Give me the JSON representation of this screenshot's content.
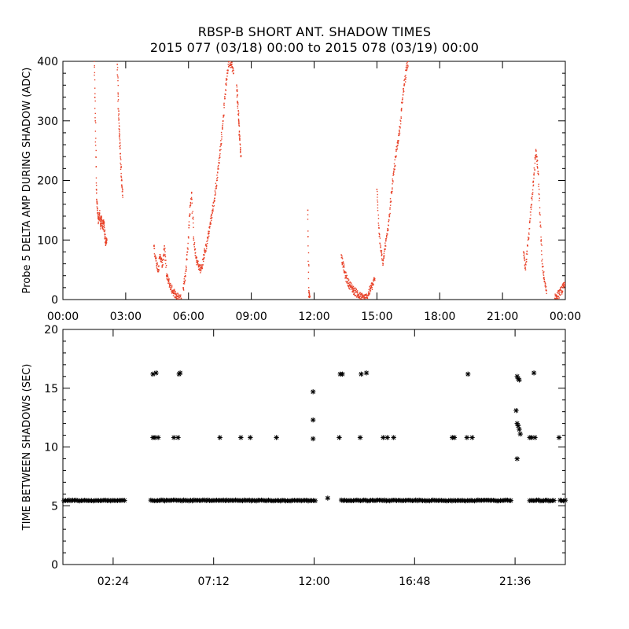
{
  "title_line1": "RBSP-B SHORT ANT. SHADOW TIMES",
  "title_line2": "2015 077 (03/18) 00:00 to 2015 078 (03/19) 00:00",
  "colors": {
    "top_series": "#e8432a",
    "bottom_series": "#000000",
    "axes": "#000000"
  },
  "chart_data": [
    {
      "type": "scatter",
      "ylabel": "Probe 5 DELTA AMP DURING SHADOW (ADC)",
      "x_unit": "hours since 2015-03-18 00:00",
      "xlim": [
        0,
        24
      ],
      "ylim": [
        0,
        400
      ],
      "x_ticks": [
        0,
        3,
        6,
        9,
        12,
        15,
        18,
        21,
        24
      ],
      "x_tick_labels": [
        "00:00",
        "03:00",
        "06:00",
        "09:00",
        "12:00",
        "15:00",
        "18:00",
        "21:00",
        "00:00"
      ],
      "y_ticks": [
        0,
        100,
        200,
        300,
        400
      ],
      "y_tick_labels": [
        "0",
        "100",
        "200",
        "300",
        "400"
      ],
      "grid": false,
      "segments": [
        {
          "x": [
            1.5,
            1.55,
            1.6,
            1.65,
            1.7,
            1.75,
            1.8,
            1.85,
            1.9,
            1.95,
            2.0,
            2.05,
            2.1
          ],
          "y": [
            400,
            300,
            185,
            150,
            130,
            145,
            125,
            135,
            120,
            130,
            110,
            95,
            100
          ]
        },
        {
          "x": [
            2.6,
            2.65,
            2.7,
            2.75,
            2.8,
            2.85
          ],
          "y": [
            395,
            320,
            285,
            245,
            200,
            175
          ]
        },
        {
          "x": [
            4.35,
            4.45,
            4.55,
            4.65,
            4.75,
            4.85,
            4.95,
            5.05,
            5.15,
            5.25,
            5.35,
            5.45,
            5.55,
            5.65
          ],
          "y": [
            90,
            65,
            50,
            75,
            55,
            90,
            40,
            30,
            20,
            15,
            10,
            5,
            3,
            2
          ]
        },
        {
          "x": [
            5.75,
            5.85,
            5.95,
            6.05,
            6.15,
            6.25,
            6.35,
            6.45,
            6.55,
            6.65,
            6.75,
            6.85,
            6.95,
            7.05,
            7.15,
            7.25,
            7.35,
            7.45,
            7.55,
            7.65,
            7.75,
            7.85,
            7.95,
            8.05,
            8.15
          ],
          "y": [
            20,
            40,
            80,
            140,
            180,
            100,
            70,
            60,
            50,
            55,
            75,
            90,
            110,
            130,
            150,
            170,
            200,
            230,
            260,
            300,
            345,
            380,
            400,
            395,
            380
          ]
        },
        {
          "x": [
            8.3,
            8.35,
            8.4,
            8.45,
            8.5
          ],
          "y": [
            360,
            330,
            300,
            270,
            240
          ]
        },
        {
          "x": [
            11.7,
            11.75,
            11.8
          ],
          "y": [
            150,
            12,
            5
          ]
        },
        {
          "x": [
            13.3,
            13.4,
            13.5,
            13.6,
            13.7,
            13.8,
            13.9,
            14.0,
            14.1,
            14.2,
            14.3,
            14.4,
            14.5,
            14.6,
            14.7,
            14.8,
            14.9
          ],
          "y": [
            75,
            55,
            40,
            30,
            25,
            20,
            15,
            12,
            8,
            5,
            4,
            3,
            3,
            10,
            18,
            25,
            35
          ]
        },
        {
          "x": [
            15.0,
            15.1,
            15.2,
            15.3,
            15.4,
            15.5,
            15.6,
            15.7,
            15.8,
            15.9,
            16.0,
            16.1,
            16.2,
            16.3,
            16.4,
            16.5
          ],
          "y": [
            185,
            120,
            80,
            60,
            90,
            110,
            140,
            180,
            210,
            240,
            265,
            290,
            330,
            360,
            385,
            400
          ]
        },
        {
          "x": [
            22.0,
            22.1,
            22.2,
            22.3,
            22.4,
            22.5,
            22.6,
            22.7,
            22.8,
            22.9,
            23.0,
            23.1
          ],
          "y": [
            80,
            50,
            90,
            130,
            170,
            210,
            250,
            215,
            130,
            60,
            30,
            15
          ]
        },
        {
          "x": [
            23.5,
            23.6,
            23.7,
            23.8,
            23.9,
            24.0
          ],
          "y": [
            2,
            5,
            10,
            15,
            20,
            25
          ]
        }
      ]
    },
    {
      "type": "scatter",
      "ylabel": "TIME BETWEEN SHADOWS (SEC)",
      "x_unit": "hours since 2015-03-18 00:00",
      "xlim": [
        0,
        24
      ],
      "ylim": [
        0,
        20
      ],
      "x_ticks": [
        2.4,
        7.2,
        12.0,
        16.8,
        21.6
      ],
      "x_tick_labels": [
        "02:24",
        "07:12",
        "12:00",
        "16:48",
        "21:36"
      ],
      "y_ticks": [
        0,
        5,
        10,
        15,
        20
      ],
      "y_tick_labels": [
        "0",
        "5",
        "10",
        "15",
        "20"
      ],
      "grid": false,
      "marker": "asterisk",
      "baseline_value": 5.45,
      "baseline_ranges": [
        [
          0.05,
          3.0
        ],
        [
          4.2,
          12.05
        ],
        [
          13.3,
          21.4
        ],
        [
          22.3,
          23.5
        ],
        [
          23.75,
          24.0
        ]
      ],
      "points": [
        {
          "x": 4.3,
          "y": 16.2
        },
        {
          "x": 4.45,
          "y": 16.3
        },
        {
          "x": 4.3,
          "y": 10.8
        },
        {
          "x": 4.4,
          "y": 10.8
        },
        {
          "x": 4.55,
          "y": 10.8
        },
        {
          "x": 5.3,
          "y": 10.8
        },
        {
          "x": 5.5,
          "y": 10.8
        },
        {
          "x": 5.55,
          "y": 16.2
        },
        {
          "x": 5.6,
          "y": 16.3
        },
        {
          "x": 7.5,
          "y": 10.8
        },
        {
          "x": 8.5,
          "y": 10.8
        },
        {
          "x": 8.95,
          "y": 10.8
        },
        {
          "x": 10.2,
          "y": 10.8
        },
        {
          "x": 11.95,
          "y": 14.7
        },
        {
          "x": 11.95,
          "y": 12.3
        },
        {
          "x": 11.95,
          "y": 10.7
        },
        {
          "x": 12.65,
          "y": 5.65
        },
        {
          "x": 13.2,
          "y": 10.8
        },
        {
          "x": 13.25,
          "y": 16.2
        },
        {
          "x": 13.35,
          "y": 16.2
        },
        {
          "x": 14.2,
          "y": 10.8
        },
        {
          "x": 14.25,
          "y": 16.2
        },
        {
          "x": 14.5,
          "y": 16.3
        },
        {
          "x": 15.3,
          "y": 10.8
        },
        {
          "x": 15.5,
          "y": 10.8
        },
        {
          "x": 15.8,
          "y": 10.8
        },
        {
          "x": 18.6,
          "y": 10.8
        },
        {
          "x": 18.7,
          "y": 10.8
        },
        {
          "x": 19.3,
          "y": 10.8
        },
        {
          "x": 19.35,
          "y": 16.2
        },
        {
          "x": 19.55,
          "y": 10.8
        },
        {
          "x": 21.7,
          "y": 16.0
        },
        {
          "x": 21.75,
          "y": 15.8
        },
        {
          "x": 21.8,
          "y": 15.7
        },
        {
          "x": 21.65,
          "y": 13.1
        },
        {
          "x": 21.7,
          "y": 12.0
        },
        {
          "x": 21.75,
          "y": 11.8
        },
        {
          "x": 21.8,
          "y": 11.5
        },
        {
          "x": 21.85,
          "y": 11.1
        },
        {
          "x": 21.7,
          "y": 9.0
        },
        {
          "x": 22.3,
          "y": 10.8
        },
        {
          "x": 22.4,
          "y": 10.8
        },
        {
          "x": 22.55,
          "y": 10.8
        },
        {
          "x": 22.5,
          "y": 16.3
        },
        {
          "x": 23.7,
          "y": 10.8
        }
      ]
    }
  ]
}
